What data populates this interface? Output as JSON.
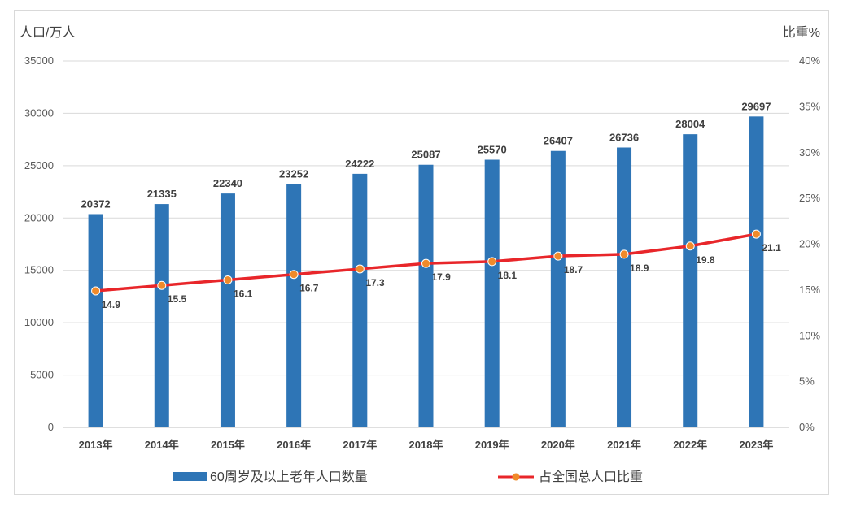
{
  "chart_data": {
    "type": "bar",
    "categories": [
      "2013年",
      "2014年",
      "2015年",
      "2016年",
      "2017年",
      "2018年",
      "2019年",
      "2020年",
      "2021年",
      "2022年",
      "2023年"
    ],
    "series": [
      {
        "name": "60周岁及以上老年人口数量",
        "type": "bar",
        "axis": "left",
        "values": [
          20372,
          21335,
          22340,
          23252,
          24222,
          25087,
          25570,
          26407,
          26736,
          28004,
          29697
        ],
        "color": "#2e75b6"
      },
      {
        "name": "占全国总人口比重",
        "type": "line",
        "axis": "right",
        "values": [
          14.9,
          15.5,
          16.1,
          16.7,
          17.3,
          17.9,
          18.1,
          18.7,
          18.9,
          19.8,
          21.1
        ],
        "color": "#e8262a",
        "marker_color": "#f08a2a"
      }
    ],
    "ylabel_left": "人口/万人",
    "ylabel_right": "比重%",
    "ylim_left": [
      0,
      35000
    ],
    "ylim_right": [
      0,
      40
    ],
    "yticks_left": [
      "0",
      "5000",
      "10000",
      "15000",
      "20000",
      "25000",
      "30000",
      "35000"
    ],
    "yticks_right": [
      "0%",
      "5%",
      "10%",
      "15%",
      "20%",
      "25%",
      "30%",
      "35%",
      "40%"
    ],
    "grid": true,
    "legend_position": "bottom"
  }
}
